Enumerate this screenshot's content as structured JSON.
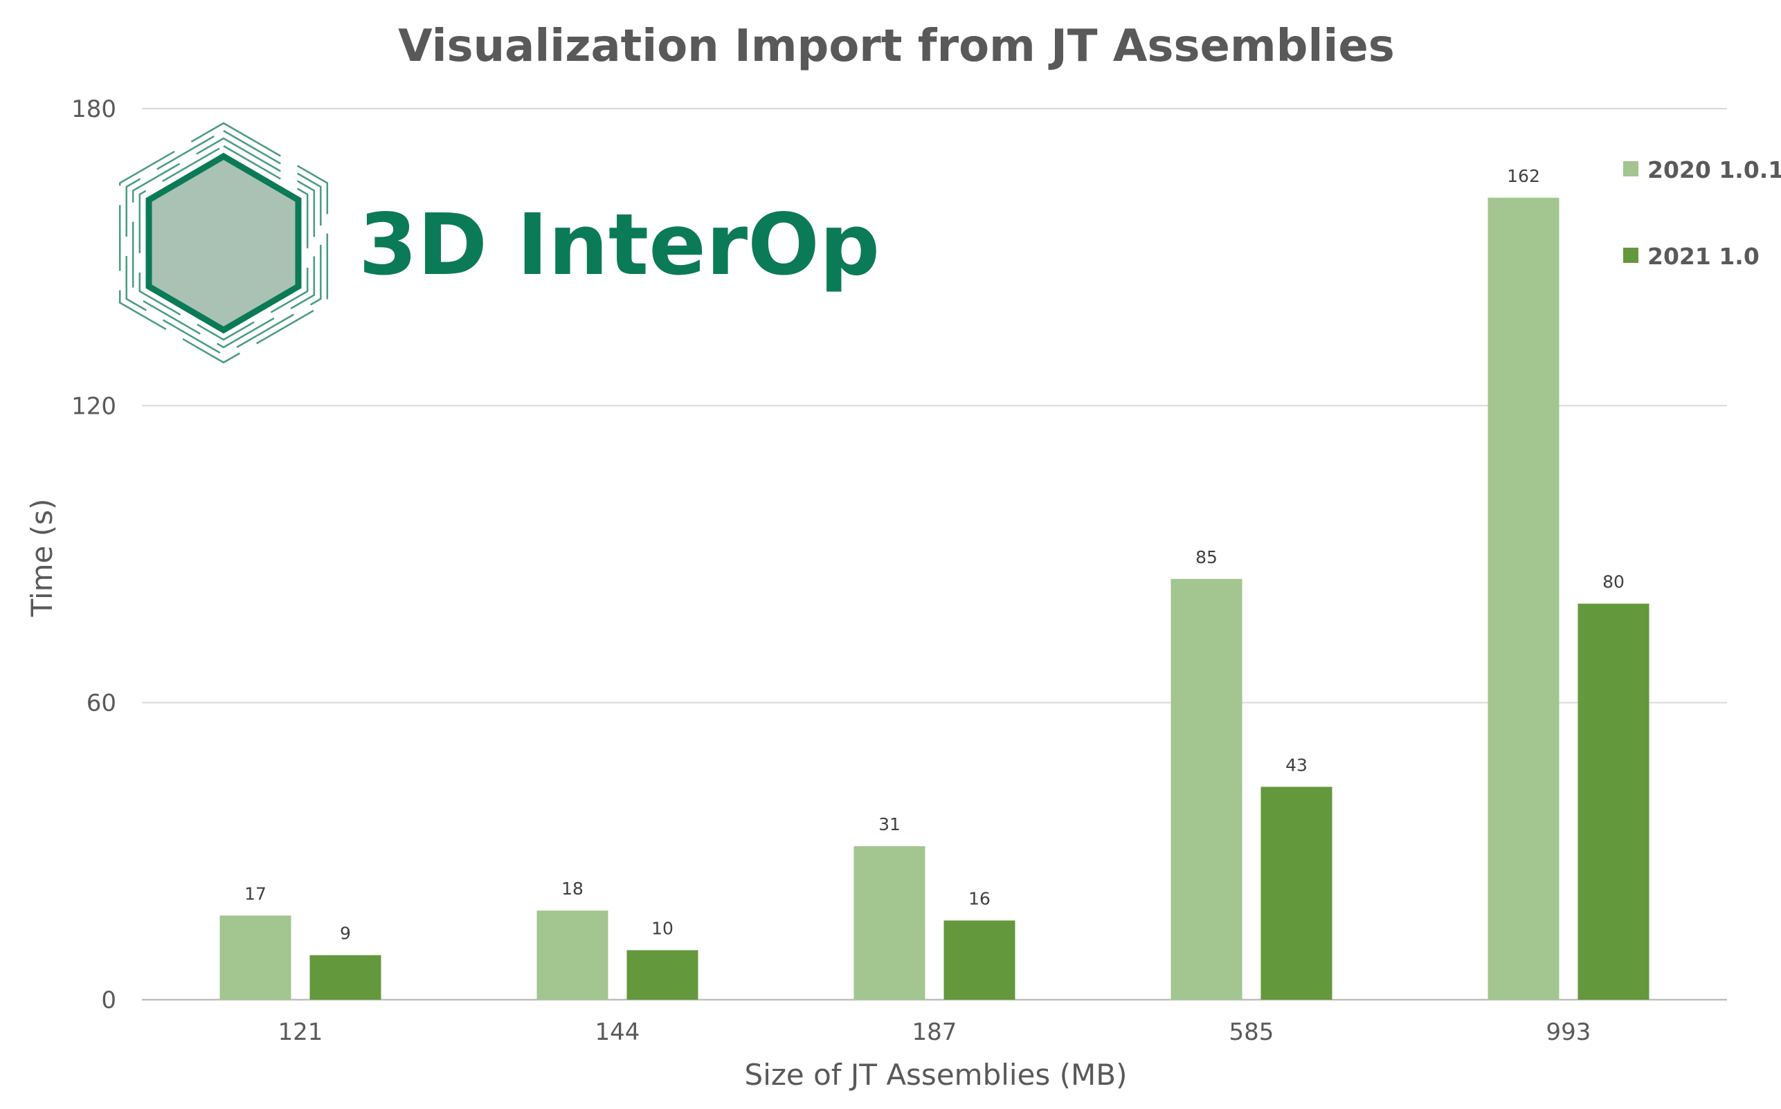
{
  "chart_data": {
    "type": "bar",
    "title": "Visualization Import from JT Assemblies",
    "xlabel": "Size of JT Assemblies (MB)",
    "ylabel": "Time (s)",
    "categories": [
      "121",
      "144",
      "187",
      "585",
      "993"
    ],
    "series": [
      {
        "name": "2020 1.0.1",
        "values": [
          17,
          18,
          31,
          85,
          162
        ],
        "color": "#a3c58f"
      },
      {
        "name": "2021 1.0",
        "values": [
          9,
          10,
          16,
          43,
          80
        ],
        "color": "#63983d"
      }
    ],
    "ylim": [
      0,
      180
    ],
    "yticks": [
      0,
      60,
      120,
      180
    ],
    "grid": true,
    "legend_position": "top-right",
    "data_labels": true
  },
  "logo": {
    "text": "3D InterOp",
    "icon": "hexagon-logo-icon",
    "color": "#0b7a57"
  }
}
